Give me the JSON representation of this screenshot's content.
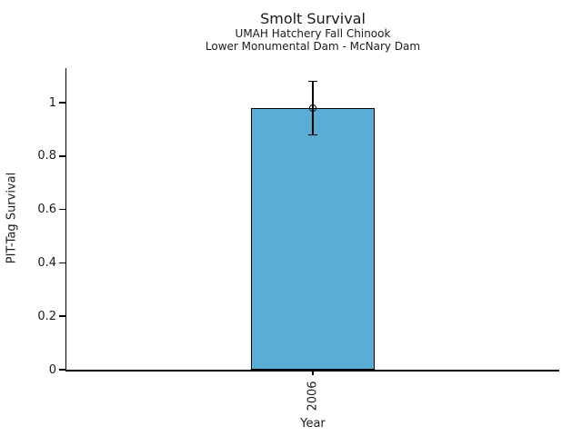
{
  "chart_data": {
    "type": "bar",
    "title": "Smolt Survival",
    "subtitle": [
      "UMAH Hatchery Fall Chinook",
      "Lower Monumental Dam - McNary Dam"
    ],
    "xlabel": "Year",
    "ylabel": "PIT-Tag Survival",
    "categories": [
      "2006"
    ],
    "series": [
      {
        "name": "PIT-Tag Survival",
        "values": [
          0.98
        ],
        "error_low": [
          0.88
        ],
        "error_high": [
          1.08
        ]
      }
    ],
    "yticks": {
      "values": [
        0,
        0.2,
        0.4,
        0.6,
        0.8,
        1
      ],
      "labels": [
        "0",
        "0.2",
        "0.4",
        "0.6",
        "0.8",
        "1"
      ]
    },
    "ylim": [
      0,
      1.13
    ],
    "grid": false,
    "legend": false,
    "marker": "open-circle",
    "colors": {
      "bar_fill": "#5badd6",
      "bar_edge": "#000000",
      "error_bar": "#000000",
      "axis": "#000000",
      "text": "#1a1a1a"
    }
  }
}
